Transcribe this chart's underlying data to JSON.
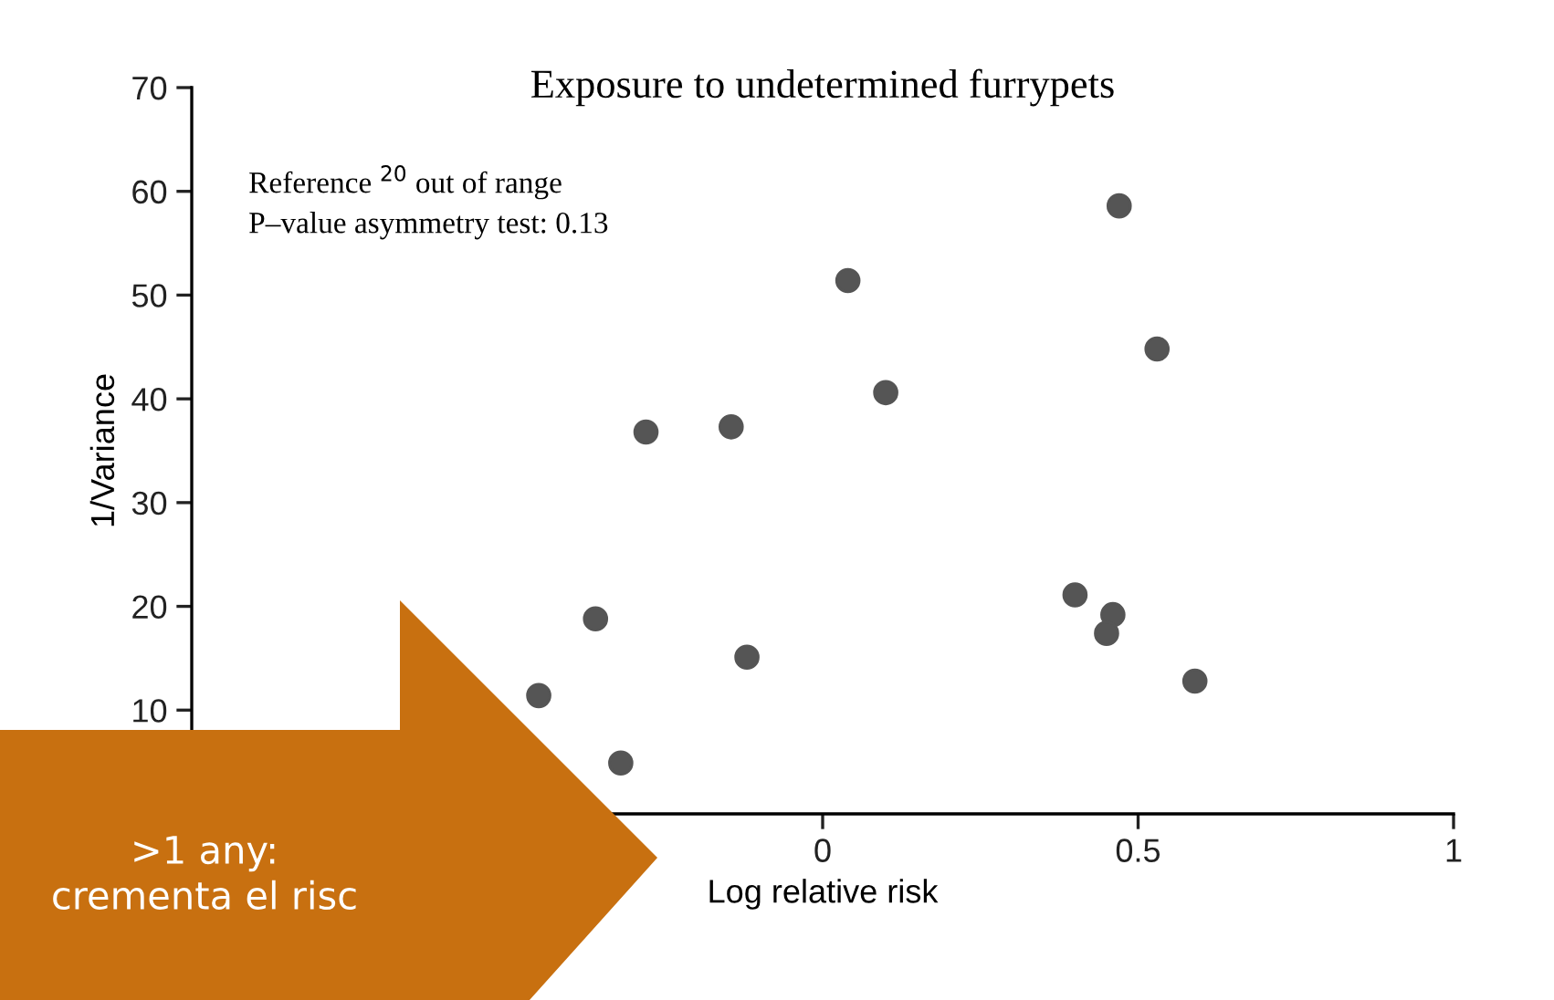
{
  "chart_data": {
    "type": "scatter",
    "title": "Exposure to undetermined furrypets",
    "xlabel": "Log relative risk",
    "ylabel": "1/Variance",
    "annotations": [
      "Reference $^{20}$ out of range",
      "P–value asymmetry test: 0.13",
      ">1 any:\ncrementa el risc"
    ],
    "x": [
      0.47,
      0.04,
      0.53,
      0.1,
      -0.28,
      -0.145,
      0.4,
      0.46,
      0.45,
      0.59,
      -0.12,
      -0.36,
      -0.45,
      -0.32
    ],
    "series": [
      {
        "color": "#555555",
        "values": [
          58.6,
          51.4,
          44.8,
          40.6,
          36.8,
          37.3,
          21.1,
          19.2,
          17.4,
          12.8,
          15.1,
          18.8,
          11.4,
          4.9
        ]
      }
    ],
    "xlim": [
      -1,
      1
    ],
    "xticks": [
      0,
      0.5,
      1
    ],
    "ylim": [
      0,
      70
    ],
    "yticks": [
      10,
      20,
      30,
      40,
      50,
      60,
      70
    ],
    "marker": "circle",
    "grid": false,
    "legend": false
  }
}
